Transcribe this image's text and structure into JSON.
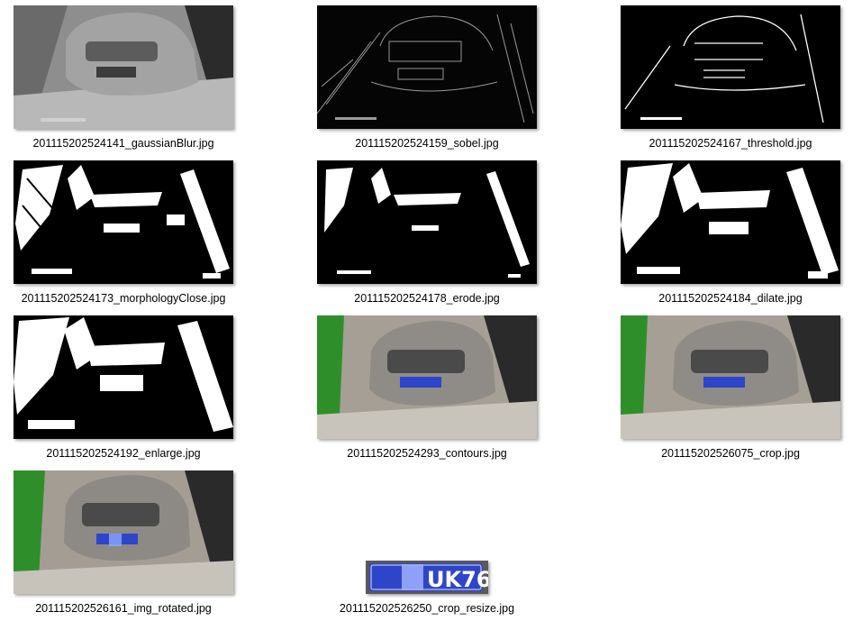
{
  "files": [
    {
      "name": "201115202524141_gaussianBlur.jpg",
      "kind": "blur"
    },
    {
      "name": "201115202524159_sobel.jpg",
      "kind": "sobel"
    },
    {
      "name": "201115202524167_threshold.jpg",
      "kind": "threshold"
    },
    {
      "name": "201115202524173_morphologyClose.jpg",
      "kind": "morph-close"
    },
    {
      "name": "201115202524178_erode.jpg",
      "kind": "erode"
    },
    {
      "name": "201115202524184_dilate.jpg",
      "kind": "dilate"
    },
    {
      "name": "201115202524192_enlarge.jpg",
      "kind": "enlarge"
    },
    {
      "name": "201115202524293_contours.jpg",
      "kind": "color"
    },
    {
      "name": "201115202526075_crop.jpg",
      "kind": "color"
    },
    {
      "name": "201115202526161_img_rotated.jpg",
      "kind": "rotated"
    },
    {
      "name": "201115202526250_crop_resize.jpg",
      "kind": "plate"
    }
  ],
  "plate_text": "UK76",
  "colors": {
    "plate_blue": "#2f45c9",
    "green_wall": "#2e8f2a",
    "black": "#000000",
    "white": "#ffffff"
  }
}
